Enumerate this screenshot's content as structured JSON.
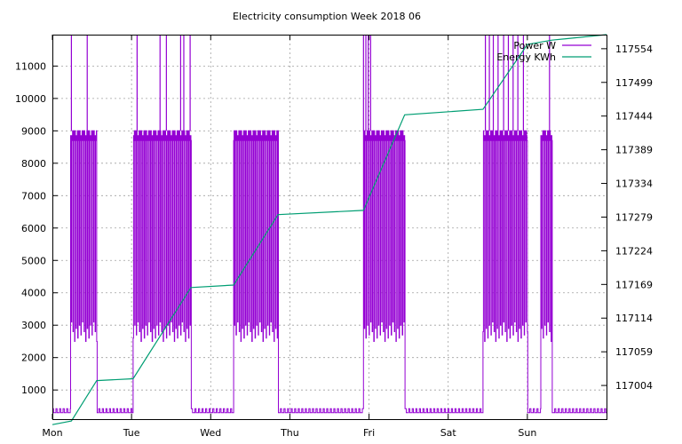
{
  "chart_data": {
    "type": "line",
    "title": "Electricity consumption Week 2018 06",
    "x": {
      "categories": [
        "Mon",
        "Tue",
        "Wed",
        "Thu",
        "Fri",
        "Sat",
        "Sun"
      ],
      "range_days": [
        0,
        7
      ]
    },
    "y_left": {
      "ticks": [
        1000,
        2000,
        3000,
        4000,
        5000,
        6000,
        7000,
        8000,
        9000,
        10000,
        11000
      ],
      "ylim": [
        100,
        11970
      ]
    },
    "y_right": {
      "ticks": [
        117004,
        117059,
        117114,
        117169,
        117224,
        117279,
        117334,
        117389,
        117444,
        117499,
        117554
      ],
      "ylim": [
        116949,
        117577
      ]
    },
    "grid": true,
    "legend_position": "top-right",
    "colors": {
      "power": "#9400d3",
      "energy": "#009e73"
    },
    "series": [
      {
        "name": "Power W",
        "axis": "left",
        "baseline": 300,
        "heating_level": 9000,
        "cycle_low": 2500,
        "spikes_to": 11970,
        "heating_blocks_days": [
          [
            0.23,
            0.56
          ],
          [
            1.02,
            1.75
          ],
          [
            2.29,
            2.85
          ],
          [
            3.93,
            4.45
          ],
          [
            5.44,
            6.0
          ],
          [
            6.17,
            6.31
          ]
        ],
        "spike_days": [
          0.24,
          0.44,
          1.07,
          1.36,
          1.44,
          1.62,
          1.66,
          1.74,
          3.93,
          3.96,
          3.99,
          4.02,
          5.47,
          5.52,
          5.57,
          5.63,
          5.7,
          5.76,
          5.82,
          5.88,
          5.95,
          6.28
        ]
      },
      {
        "name": "Energy KWh",
        "axis": "right",
        "points": [
          [
            0.0,
            116940
          ],
          [
            0.24,
            116946
          ],
          [
            0.56,
            117012
          ],
          [
            1.02,
            117015
          ],
          [
            1.75,
            117164
          ],
          [
            2.29,
            117168
          ],
          [
            2.85,
            117283
          ],
          [
            3.93,
            117290
          ],
          [
            4.45,
            117446
          ],
          [
            5.44,
            117455
          ],
          [
            6.0,
            117561
          ],
          [
            6.31,
            117568
          ],
          [
            7.0,
            117578
          ]
        ]
      }
    ]
  }
}
